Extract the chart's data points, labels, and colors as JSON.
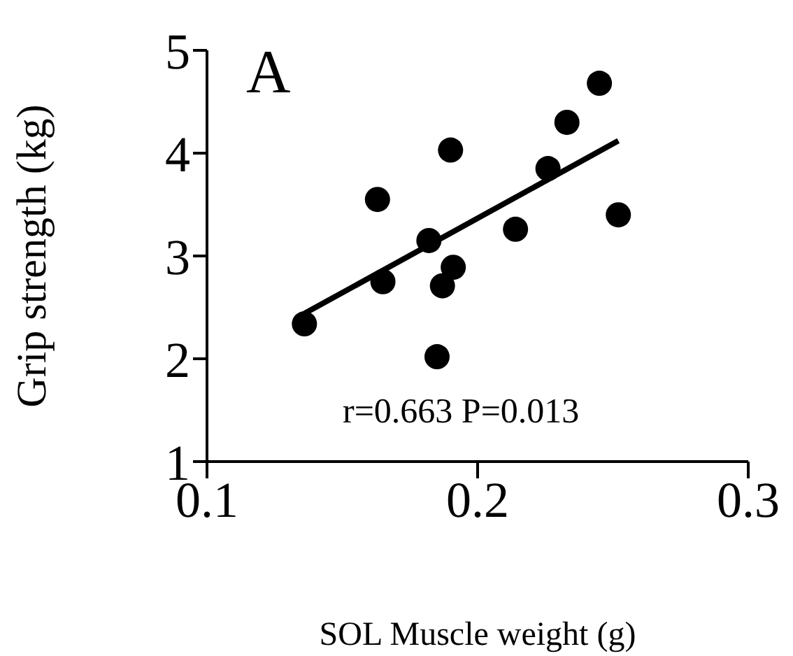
{
  "chart_data": {
    "type": "scatter",
    "xlabel": "SOL Muscle weight (g)",
    "ylabel": "Grip  strength (kg)",
    "xlim": [
      0.1,
      0.3
    ],
    "xticks": [
      0.1,
      0.2,
      0.3
    ],
    "ylim": [
      1,
      5
    ],
    "yticks": [
      1,
      2,
      3,
      4,
      5
    ],
    "grid": false,
    "legend": false,
    "annotations": [
      "A",
      "r=0.663  P=0.013"
    ],
    "series": [
      {
        "color": "#000000",
        "marker": "circle",
        "x": [
          0.136,
          0.163,
          0.165,
          0.182,
          0.191,
          0.187,
          0.185,
          0.19,
          0.214,
          0.226,
          0.233,
          0.245,
          0.252
        ],
        "values": [
          2.34,
          3.55,
          2.75,
          3.15,
          2.89,
          2.71,
          2.02,
          4.03,
          3.26,
          3.85,
          4.3,
          4.68,
          3.4
        ]
      },
      {
        "type": "line",
        "color": "#000000",
        "marker": "none",
        "line_style": "solid",
        "x": [
          0.136,
          0.252
        ],
        "values": [
          2.44,
          4.12
        ]
      }
    ]
  }
}
